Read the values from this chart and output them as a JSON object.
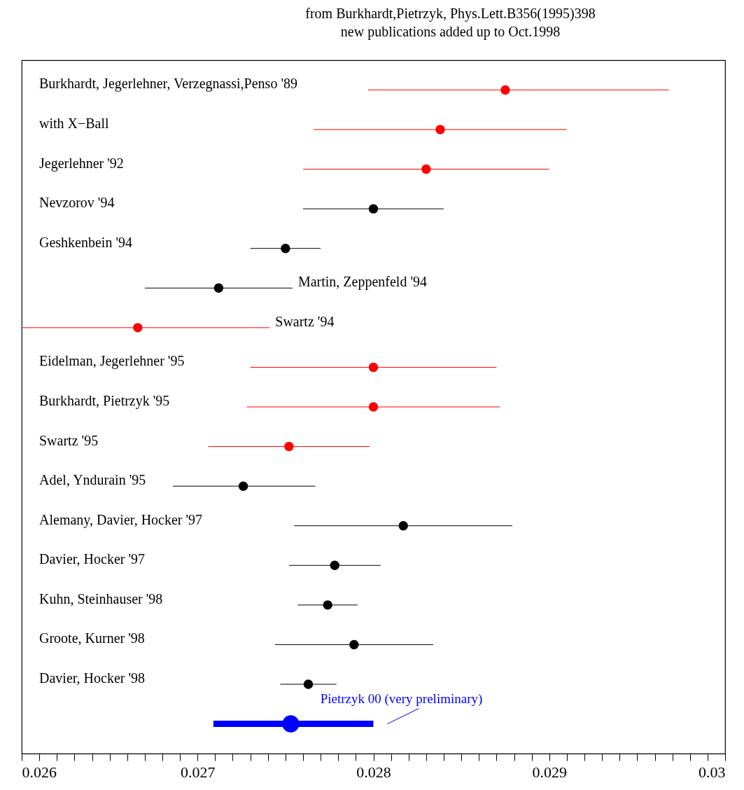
{
  "chart_data": {
    "type": "scatter",
    "title": "from Burkhardt,Pietrzyk, Phys.Lett.B356(1995)398",
    "subtitle": "new publications added up to Oct.1998",
    "orientation": "horizontal",
    "tick_labels": "x",
    "marker": "circle",
    "categories": [
      "Burkhardt, Jegerlehner, Verzegnassi,Penso '89",
      "with X−Ball",
      "Jegerlehner '92",
      "Nevzorov '94",
      "Geshkenbein '94",
      "Martin, Zeppenfeld '94",
      "Swartz '94",
      "Eidelman, Jegerlehner '95",
      "Burkhardt, Pietrzyk '95",
      "Swartz '95",
      "Adel, Yndurain '95",
      "Alemany, Davier, Hocker '97",
      "Davier, Hocker '97",
      "Kuhn, Steinhauser '98",
      "Groote, Kurner '98",
      "Davier, Hocker '98",
      null
    ],
    "series": [
      {
        "color": "#ff0000",
        "values": [
          0.02875,
          0.02838,
          0.0283,
          null,
          null,
          null,
          0.02666,
          0.028,
          0.028,
          0.02752,
          null,
          null,
          null,
          null,
          null,
          null,
          null
        ],
        "errors": [
          [
            0.02797,
            0.02968
          ],
          [
            0.02766,
            0.0291
          ],
          [
            0.0276,
            0.029
          ],
          null,
          null,
          null,
          [
            0.026,
            0.02741
          ],
          [
            0.0273,
            0.0287
          ],
          [
            0.02728,
            0.02872
          ],
          [
            0.02706,
            0.02798
          ],
          null,
          null,
          null,
          null,
          null,
          null,
          null
        ]
      },
      {
        "color": "#000000",
        "values": [
          null,
          null,
          null,
          0.028,
          0.0275,
          0.02712,
          null,
          null,
          null,
          null,
          0.02726,
          0.02817,
          0.02778,
          0.02774,
          0.02789,
          0.02763,
          null
        ],
        "errors": [
          null,
          null,
          null,
          [
            0.0276,
            0.0284
          ],
          [
            0.0273,
            0.0277
          ],
          [
            0.0267,
            0.02754
          ],
          null,
          null,
          null,
          null,
          [
            0.02686,
            0.02767
          ],
          [
            0.02755,
            0.02879
          ],
          [
            0.02752,
            0.02804
          ],
          [
            0.02757,
            0.02791
          ],
          [
            0.02744,
            0.02834
          ],
          [
            0.02747,
            0.02779
          ],
          null
        ]
      },
      {
        "color": "#0000ff",
        "values": [
          null,
          null,
          null,
          null,
          null,
          null,
          null,
          null,
          null,
          null,
          null,
          null,
          null,
          null,
          null,
          null,
          0.02753
        ],
        "errors": [
          null,
          null,
          null,
          null,
          null,
          null,
          null,
          null,
          null,
          null,
          null,
          null,
          null,
          null,
          null,
          null,
          [
            0.02709,
            0.028
          ]
        ]
      }
    ],
    "annotations": [
      "Pietrzyk 00 (very preliminary)"
    ],
    "xlim": [
      0.026,
      0.03
    ],
    "xticks": [
      0.026,
      {
        "value": 0.0261,
        "label": null
      },
      {
        "value": 0.0262,
        "label": null
      },
      {
        "value": 0.0263,
        "label": null
      },
      {
        "value": 0.0264,
        "label": null
      },
      {
        "value": 0.0265,
        "label": null
      },
      {
        "value": 0.0266,
        "label": null
      },
      {
        "value": 0.0267,
        "label": null
      },
      {
        "value": 0.0268,
        "label": null
      },
      {
        "value": 0.0269,
        "label": null
      },
      0.027,
      {
        "value": 0.0271,
        "label": null
      },
      {
        "value": 0.0272,
        "label": null
      },
      {
        "value": 0.0273,
        "label": null
      },
      {
        "value": 0.0274,
        "label": null
      },
      {
        "value": 0.0275,
        "label": null
      },
      {
        "value": 0.0276,
        "label": null
      },
      {
        "value": 0.0277,
        "label": null
      },
      {
        "value": 0.0278,
        "label": null
      },
      {
        "value": 0.0279,
        "label": null
      },
      0.028,
      {
        "value": 0.0281,
        "label": null
      },
      {
        "value": 0.0282,
        "label": null
      },
      {
        "value": 0.0283,
        "label": null
      },
      {
        "value": 0.0284,
        "label": null
      },
      {
        "value": 0.0285,
        "label": null
      },
      {
        "value": 0.0286,
        "label": null
      },
      {
        "value": 0.0287,
        "label": null
      },
      {
        "value": 0.0288,
        "label": null
      },
      {
        "value": 0.0289,
        "label": null
      },
      0.029,
      {
        "value": 0.0291,
        "label": null
      },
      {
        "value": 0.0292,
        "label": null
      },
      {
        "value": 0.0293,
        "label": null
      },
      {
        "value": 0.0294,
        "label": null
      },
      {
        "value": 0.0295,
        "label": null
      },
      {
        "value": 0.0296,
        "label": null
      },
      {
        "value": 0.0297,
        "label": null
      },
      {
        "value": 0.0298,
        "label": null
      },
      {
        "value": 0.0299,
        "label": null
      },
      0.03
    ]
  }
}
